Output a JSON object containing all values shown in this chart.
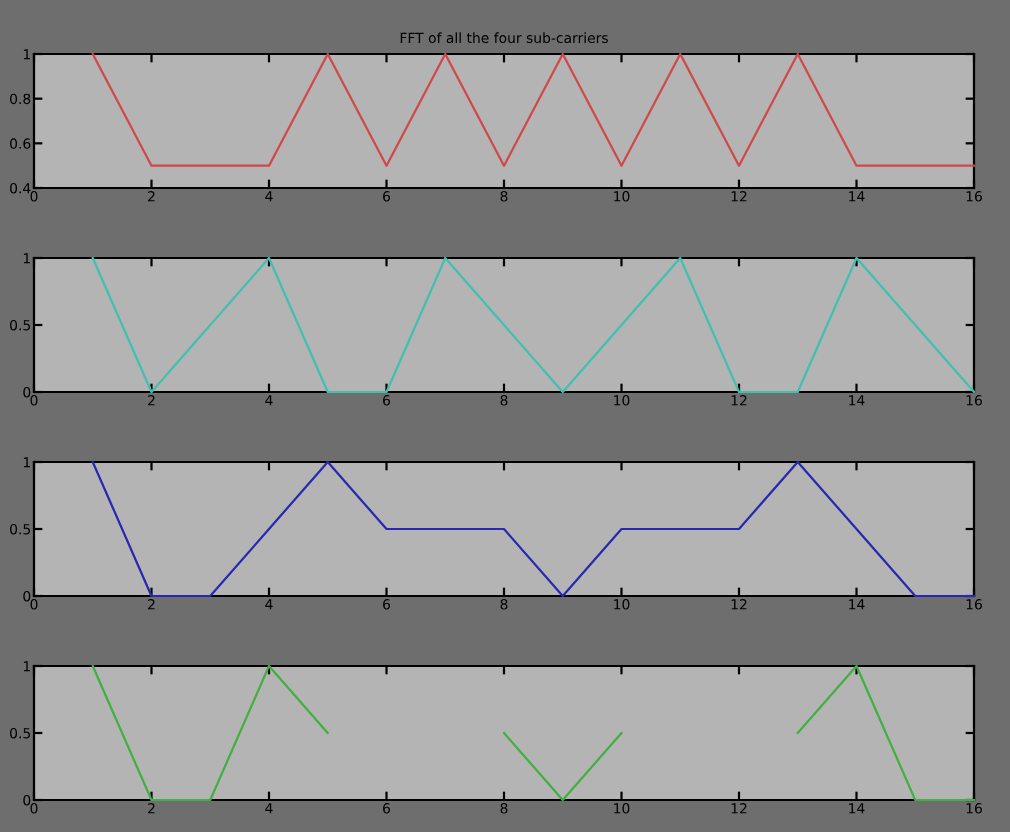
{
  "chart_data": [
    {
      "type": "line",
      "title": "FFT of all the four sub-carriers",
      "x": [
        1,
        2,
        3,
        4,
        5,
        6,
        7,
        8,
        9,
        10,
        11,
        12,
        13,
        14,
        15,
        16
      ],
      "series": [
        {
          "color": "#d04848",
          "values": [
            1,
            0.5,
            0.5,
            0.5,
            1,
            0.5,
            1,
            0.5,
            1,
            0.5,
            1,
            0.5,
            1,
            0.5,
            0.5,
            0.5
          ]
        }
      ],
      "xlim": [
        0,
        16
      ],
      "xticks": [
        0,
        2,
        4,
        6,
        8,
        10,
        12,
        14,
        16
      ],
      "ylim": [
        0.4,
        1
      ],
      "yticks": [
        0.4,
        0.6,
        0.8,
        1
      ],
      "line_style": "solid"
    },
    {
      "type": "line",
      "x": [
        1,
        2,
        3,
        4,
        5,
        6,
        7,
        8,
        9,
        10,
        11,
        12,
        13,
        14,
        15,
        16
      ],
      "series": [
        {
          "color": "#40c0b0",
          "values": [
            1,
            0,
            0.5,
            1,
            0,
            0,
            1,
            0.5,
            0,
            0.5,
            1,
            0,
            0,
            1,
            0.5,
            0
          ]
        }
      ],
      "xlim": [
        0,
        16
      ],
      "xticks": [
        0,
        2,
        4,
        6,
        8,
        10,
        12,
        14,
        16
      ],
      "ylim": [
        0,
        1
      ],
      "yticks": [
        0,
        0.5,
        1
      ],
      "line_style": "solid"
    },
    {
      "type": "line",
      "x": [
        1,
        2,
        3,
        4,
        5,
        6,
        7,
        8,
        9,
        10,
        11,
        12,
        13,
        14,
        15,
        16
      ],
      "series": [
        {
          "color": "#2828b0",
          "values": [
            1,
            0,
            0,
            0.5,
            1,
            0.5,
            0.5,
            0.5,
            0,
            0.5,
            0.5,
            0.5,
            1,
            0.5,
            0,
            0
          ]
        }
      ],
      "xlim": [
        0,
        16
      ],
      "xticks": [
        0,
        2,
        4,
        6,
        8,
        10,
        12,
        14,
        16
      ],
      "ylim": [
        0,
        1
      ],
      "yticks": [
        0,
        0.5,
        1
      ],
      "line_style": "solid"
    },
    {
      "type": "line",
      "x": [
        1,
        2,
        3,
        4,
        5,
        6,
        7,
        8,
        9,
        10,
        11,
        12,
        13,
        14,
        15,
        16
      ],
      "series": [
        {
          "color": "#40b040",
          "values": [
            1,
            0,
            0,
            1,
            0.5,
            null,
            null,
            0.5,
            0,
            0.5,
            null,
            null,
            0.5,
            1,
            0,
            0
          ]
        }
      ],
      "xlim": [
        0,
        16
      ],
      "xticks": [
        0,
        2,
        4,
        6,
        8,
        10,
        12,
        14,
        16
      ],
      "ylim": [
        0,
        1
      ],
      "yticks": [
        0,
        0.5,
        1
      ],
      "line_style": "solid"
    }
  ]
}
